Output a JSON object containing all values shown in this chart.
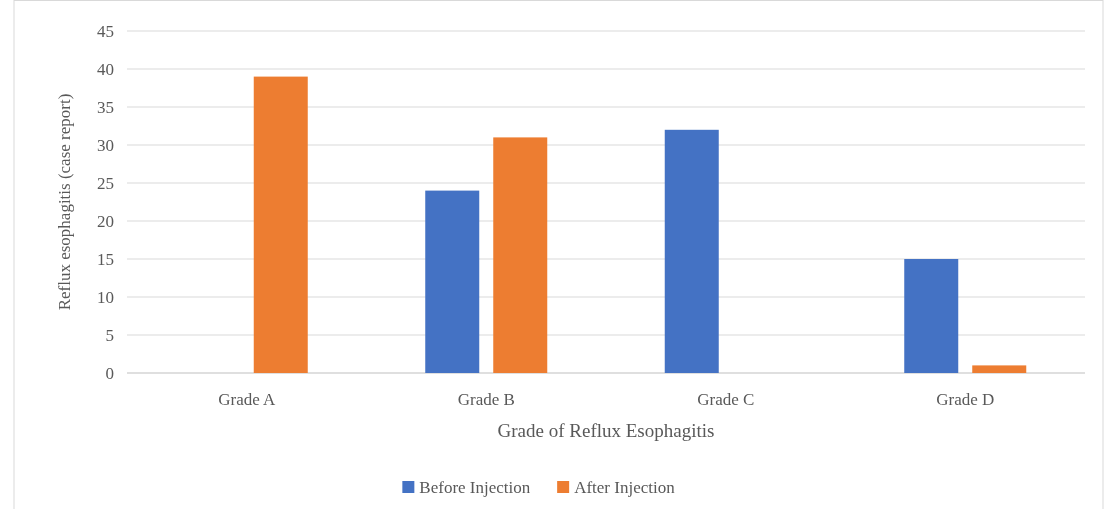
{
  "chart_data": {
    "type": "bar",
    "xlabel": "Grade of Reflux Esophagitis",
    "ylabel": "Reflux esophagitis (case report)",
    "categories": [
      "Grade A",
      "Grade B",
      "Grade C",
      "Grade D"
    ],
    "series": [
      {
        "name": "Before Injection",
        "color": "#4472c4",
        "values": [
          0,
          24,
          32,
          15
        ]
      },
      {
        "name": "After Injection",
        "color": "#ed7d31",
        "values": [
          39,
          31,
          0,
          1
        ]
      }
    ],
    "ylim": [
      0,
      45
    ],
    "yticks": [
      0,
      5,
      10,
      15,
      20,
      25,
      30,
      35,
      40,
      45
    ],
    "grid": "y",
    "legend": "bottom"
  }
}
